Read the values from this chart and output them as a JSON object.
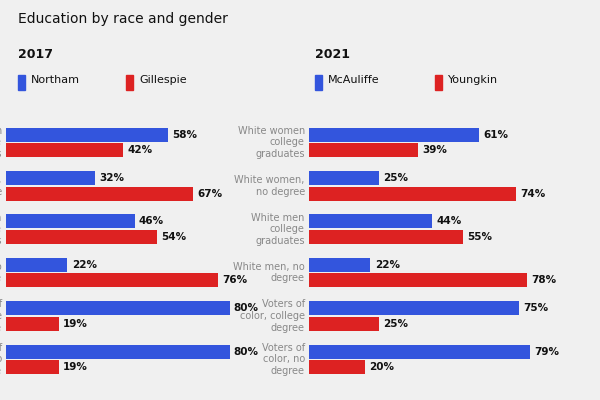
{
  "title": "Education by race and gender",
  "background_color": "#f0f0f0",
  "left_panel": {
    "year": "2017",
    "legend": [
      "Northam",
      "Gillespie"
    ],
    "categories": [
      "White women\ncollege\ngraduates",
      "White women,\nno degree",
      "White men\ncollege\ngraduates",
      "White men, no\ndegree",
      "Voters of\ncolor, college\ndegree",
      "Voters of\ncolor, no\ndegree"
    ],
    "blue_values": [
      58,
      32,
      46,
      22,
      80,
      80
    ],
    "red_values": [
      42,
      67,
      54,
      76,
      19,
      19
    ]
  },
  "right_panel": {
    "year": "2021",
    "legend": [
      "McAuliffe",
      "Youngkin"
    ],
    "categories": [
      "White women\ncollege\ngraduates",
      "White women,\nno degree",
      "White men\ncollege\ngraduates",
      "White men, no\ndegree",
      "Voters of\ncolor, college\ndegree",
      "Voters of\ncolor, no\ndegree"
    ],
    "blue_values": [
      61,
      25,
      44,
      22,
      75,
      79
    ],
    "red_values": [
      39,
      74,
      55,
      78,
      25,
      20
    ]
  },
  "blue_color": "#3355dd",
  "red_color": "#dd2222",
  "label_color": "#888888",
  "value_label_color": "#111111",
  "bar_height": 0.32,
  "title_fontsize": 10,
  "year_fontsize": 9,
  "legend_fontsize": 8,
  "category_fontsize": 7,
  "value_fontsize": 7.5
}
